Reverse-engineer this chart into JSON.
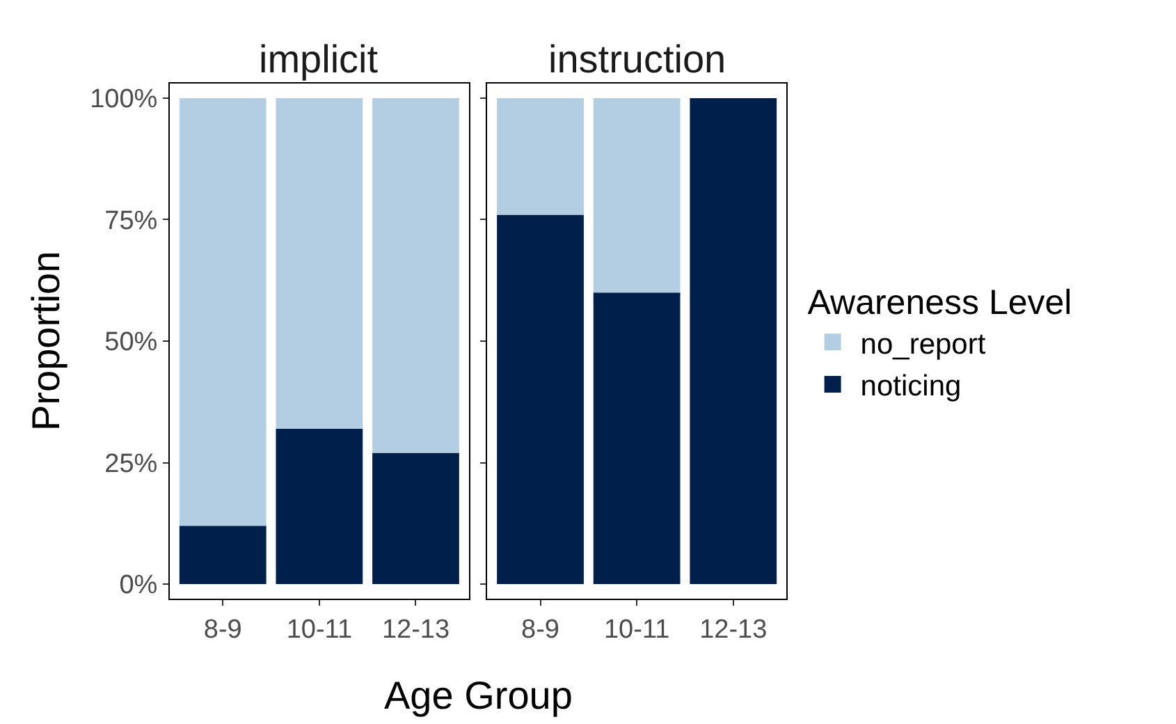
{
  "chart_data": [
    {
      "type": "bar",
      "title": "implicit",
      "xlabel": "Age Group",
      "ylabel": "Proportion",
      "stacked": true,
      "categories": [
        "8-9",
        "10-11",
        "12-13"
      ],
      "ylim": [
        -0.03,
        1.03
      ],
      "yticks": [
        {
          "value": 0,
          "label": "0%"
        },
        {
          "value": 0.25,
          "label": "25%"
        },
        {
          "value": 0.5,
          "label": "50%"
        },
        {
          "value": 0.75,
          "label": "75%"
        },
        {
          "value": 1,
          "label": "100%"
        }
      ],
      "legend": "right",
      "series": [
        {
          "name": "noticing",
          "color": "#011f4b",
          "values": [
            0.12,
            0.32,
            0.27
          ]
        },
        {
          "name": "no_report",
          "color": "#b3cde3",
          "values": [
            0.88,
            0.68,
            0.73
          ]
        }
      ]
    },
    {
      "type": "bar",
      "title": "instruction",
      "legend_title": "Awareness Level",
      "stacked": true,
      "categories": [
        "8-9",
        "10-11",
        "12-13"
      ],
      "ylim": [
        -0.03,
        1.03
      ],
      "yticks": [
        {
          "value": 0,
          "label": null
        },
        {
          "value": 0.25,
          "label": null
        },
        {
          "value": 0.5,
          "label": null
        },
        {
          "value": 0.75,
          "label": null
        },
        {
          "value": 1,
          "label": null
        }
      ],
      "legend": "right",
      "tick_labels": "x",
      "series": [
        {
          "name": "noticing",
          "color": "#011f4b",
          "values": [
            0.76,
            0.6,
            1.0
          ]
        },
        {
          "name": "no_report",
          "color": "#b3cde3",
          "values": [
            0.24,
            0.4,
            0.0
          ]
        }
      ]
    }
  ]
}
